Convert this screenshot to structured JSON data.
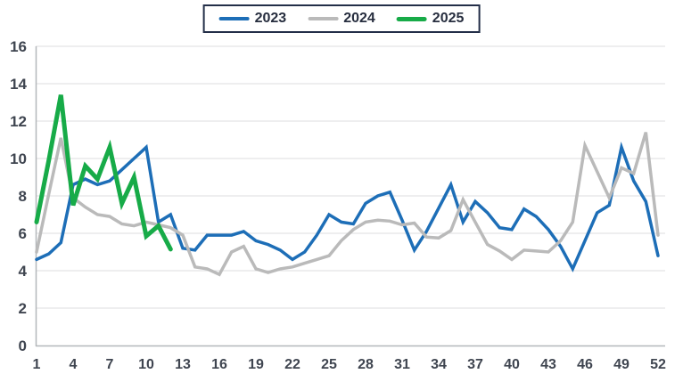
{
  "chart": {
    "background": "#ffffff",
    "legend_border_color": "#232e48",
    "axis_label_color": "#3f4550",
    "gridline_color": "#dcdddf",
    "spine_color": "#b4b7ba"
  },
  "chart_data": {
    "type": "line",
    "title": "",
    "xlabel": "",
    "ylabel": "",
    "x_range": [
      1,
      52
    ],
    "y_range": [
      0,
      16
    ],
    "x_ticks": [
      1,
      4,
      7,
      10,
      13,
      16,
      19,
      22,
      25,
      28,
      31,
      34,
      37,
      40,
      43,
      46,
      49,
      52
    ],
    "y_ticks": [
      0,
      2,
      4,
      6,
      8,
      10,
      12,
      14,
      16
    ],
    "grid": "horizontal",
    "legend_position": "top-center",
    "series": [
      {
        "name": "2023",
        "color": "#1d6eb7",
        "line_width": 3.5,
        "x_start": 1,
        "values": [
          4.6,
          4.9,
          5.5,
          8.6,
          8.9,
          8.6,
          8.8,
          9.4,
          10.0,
          10.6,
          6.6,
          7.0,
          5.2,
          5.1,
          5.9,
          5.9,
          5.9,
          6.1,
          5.6,
          5.4,
          5.1,
          4.6,
          5.0,
          5.9,
          7.0,
          6.6,
          6.5,
          7.6,
          8.0,
          8.2,
          6.7,
          5.1,
          6.1,
          7.35,
          8.6,
          6.6,
          7.7,
          7.1,
          6.3,
          6.2,
          7.3,
          6.9,
          6.2,
          5.3,
          4.1,
          5.6,
          7.1,
          7.5,
          10.6,
          8.8,
          7.7,
          4.8
        ]
      },
      {
        "name": "2024",
        "color": "#bababa",
        "line_width": 3.5,
        "x_start": 1,
        "values": [
          5.0,
          8.1,
          11.1,
          7.9,
          7.4,
          7.0,
          6.9,
          6.5,
          6.4,
          6.6,
          6.45,
          6.3,
          5.9,
          4.2,
          4.1,
          3.8,
          5.0,
          5.3,
          4.1,
          3.9,
          4.1,
          4.2,
          4.4,
          4.6,
          4.8,
          5.6,
          6.2,
          6.6,
          6.7,
          6.65,
          6.45,
          6.55,
          5.8,
          5.75,
          6.15,
          7.8,
          6.6,
          5.4,
          5.05,
          4.6,
          5.1,
          5.05,
          5.0,
          5.6,
          6.6,
          10.7,
          9.3,
          7.9,
          9.5,
          9.2,
          11.4,
          5.9
        ]
      },
      {
        "name": "2025",
        "color": "#17ab48",
        "line_width": 5,
        "x_start": 1,
        "values": [
          6.6,
          9.9,
          13.4,
          7.5,
          9.6,
          8.9,
          10.6,
          7.6,
          9.0,
          5.85,
          6.4,
          5.15
        ]
      }
    ]
  }
}
